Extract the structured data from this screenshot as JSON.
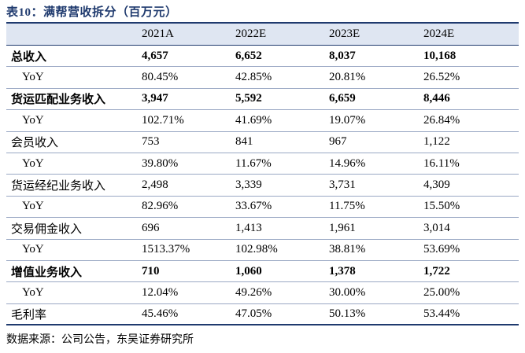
{
  "title": "表10：满帮营收拆分（百万元）",
  "header": [
    "",
    "2021A",
    "2022E",
    "2023E",
    "2024E"
  ],
  "rows": [
    {
      "label": "总收入",
      "values": [
        "4,657",
        "6,652",
        "8,037",
        "10,168"
      ],
      "bold": true,
      "indent": false
    },
    {
      "label": "YoY",
      "values": [
        "80.45%",
        "42.85%",
        "20.81%",
        "26.52%"
      ],
      "bold": false,
      "indent": true
    },
    {
      "label": "货运匹配业务收入",
      "values": [
        "3,947",
        "5,592",
        "6,659",
        "8,446"
      ],
      "bold": true,
      "indent": false
    },
    {
      "label": "YoY",
      "values": [
        "102.71%",
        "41.69%",
        "19.07%",
        "26.84%"
      ],
      "bold": false,
      "indent": true
    },
    {
      "label": "会员收入",
      "values": [
        "753",
        "841",
        "967",
        "1,122"
      ],
      "bold": false,
      "indent": false
    },
    {
      "label": "YoY",
      "values": [
        "39.80%",
        "11.67%",
        "14.96%",
        "16.11%"
      ],
      "bold": false,
      "indent": true
    },
    {
      "label": "货运经纪业务收入",
      "values": [
        "2,498",
        "3,339",
        "3,731",
        "4,309"
      ],
      "bold": false,
      "indent": false
    },
    {
      "label": "YoY",
      "values": [
        "82.96%",
        "33.67%",
        "11.75%",
        "15.50%"
      ],
      "bold": false,
      "indent": true
    },
    {
      "label": "交易佣金收入",
      "values": [
        "696",
        "1,413",
        "1,961",
        "3,014"
      ],
      "bold": false,
      "indent": false
    },
    {
      "label": "YoY",
      "values": [
        "1513.37%",
        "102.98%",
        "38.81%",
        "53.69%"
      ],
      "bold": false,
      "indent": true
    },
    {
      "label": "增值业务收入",
      "values": [
        "710",
        "1,060",
        "1,378",
        "1,722"
      ],
      "bold": true,
      "indent": false
    },
    {
      "label": "YoY",
      "values": [
        "12.04%",
        "49.26%",
        "30.00%",
        "25.00%"
      ],
      "bold": false,
      "indent": true
    },
    {
      "label": "毛利率",
      "values": [
        "45.46%",
        "47.05%",
        "50.13%",
        "53.44%"
      ],
      "bold": false,
      "indent": false
    }
  ],
  "source": "数据来源：公司公告，东吴证券研究所"
}
